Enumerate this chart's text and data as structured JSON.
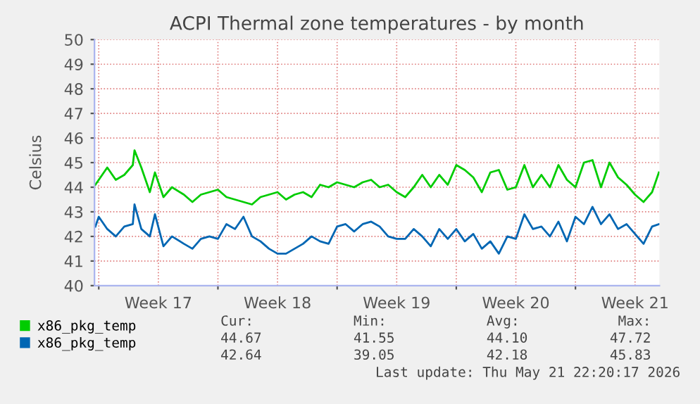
{
  "chart_data": {
    "type": "line",
    "title": "ACPI Thermal zone temperatures - by month",
    "ylabel": "Celsius",
    "x": [
      "2026-04-18T19:12",
      "2026-04-19T00:00",
      "2026-04-19T12:00",
      "2026-04-20T00:00",
      "2026-04-20T12:00",
      "2026-04-21T00:00",
      "2026-04-21T02:24",
      "2026-04-21T12:00",
      "2026-04-22T00:00",
      "2026-04-22T07:12",
      "2026-04-22T19:12",
      "2026-04-23T07:12",
      "2026-04-24T00:00",
      "2026-04-24T12:00",
      "2026-04-25T00:00",
      "2026-04-25T12:00",
      "2026-04-26T00:00",
      "2026-04-26T12:00",
      "2026-04-27T00:00",
      "2026-04-27T12:00",
      "2026-04-28T00:00",
      "2026-04-28T12:00",
      "2026-04-29T00:00",
      "2026-04-29T12:00",
      "2026-04-30T00:00",
      "2026-04-30T12:00",
      "2026-05-01T00:00",
      "2026-05-01T12:00",
      "2026-05-02T00:00",
      "2026-05-02T12:00",
      "2026-05-03T00:00",
      "2026-05-03T12:00",
      "2026-05-04T00:00",
      "2026-05-04T12:00",
      "2026-05-05T00:00",
      "2026-05-05T12:00",
      "2026-05-06T00:00",
      "2026-05-06T12:00",
      "2026-05-07T00:00",
      "2026-05-07T12:00",
      "2026-05-08T00:00",
      "2026-05-08T12:00",
      "2026-05-09T00:00",
      "2026-05-09T12:00",
      "2026-05-10T00:00",
      "2026-05-10T12:00",
      "2026-05-11T00:00",
      "2026-05-11T12:00",
      "2026-05-12T00:00",
      "2026-05-12T12:00",
      "2026-05-13T00:00",
      "2026-05-13T12:00",
      "2026-05-14T00:00",
      "2026-05-14T12:00",
      "2026-05-15T00:00",
      "2026-05-15T12:00",
      "2026-05-16T00:00",
      "2026-05-16T12:00",
      "2026-05-17T00:00",
      "2026-05-17T12:00",
      "2026-05-18T00:00",
      "2026-05-18T12:00",
      "2026-05-19T00:00",
      "2026-05-19T12:00",
      "2026-05-20T00:00",
      "2026-05-20T12:00",
      "2026-05-21T00:00",
      "2026-05-21T12:00",
      "2026-05-21T21:36"
    ],
    "series": [
      {
        "name": "x86_pkg_temp",
        "color": "#00cc00",
        "values": [
          44.1,
          44.3,
          44.8,
          44.3,
          44.5,
          44.9,
          45.5,
          44.8,
          43.8,
          44.6,
          43.6,
          44.0,
          43.7,
          43.4,
          43.7,
          43.8,
          43.9,
          43.6,
          43.5,
          43.4,
          43.3,
          43.6,
          43.7,
          43.8,
          43.5,
          43.7,
          43.8,
          43.6,
          44.1,
          44.0,
          44.2,
          44.1,
          44.0,
          44.2,
          44.3,
          44.0,
          44.1,
          43.8,
          43.6,
          44.0,
          44.5,
          44.0,
          44.5,
          44.1,
          44.9,
          44.7,
          44.4,
          43.8,
          44.6,
          44.7,
          43.9,
          44.0,
          44.9,
          44.0,
          44.5,
          44.0,
          44.9,
          44.3,
          44.0,
          45.0,
          45.1,
          44.0,
          45.0,
          44.4,
          44.1,
          43.7,
          43.4,
          43.8,
          44.6
        ]
      },
      {
        "name": "x86_pkg_temp",
        "color": "#0066b3",
        "values": [
          42.4,
          42.8,
          42.3,
          42.0,
          42.4,
          42.5,
          43.3,
          42.3,
          42.0,
          42.9,
          41.6,
          42.0,
          41.7,
          41.5,
          41.9,
          42.0,
          41.9,
          42.5,
          42.3,
          42.8,
          42.0,
          41.8,
          41.5,
          41.3,
          41.3,
          41.5,
          41.7,
          42.0,
          41.8,
          41.7,
          42.4,
          42.5,
          42.2,
          42.5,
          42.6,
          42.4,
          42.0,
          41.9,
          41.9,
          42.3,
          42.0,
          41.6,
          42.3,
          41.9,
          42.3,
          41.8,
          42.1,
          41.5,
          41.8,
          41.3,
          42.0,
          41.9,
          42.9,
          42.3,
          42.4,
          42.0,
          42.6,
          41.8,
          42.8,
          42.5,
          43.2,
          42.5,
          42.9,
          42.3,
          42.5,
          42.1,
          41.7,
          42.4,
          42.5
        ]
      }
    ],
    "xlim": [
      "2026-04-18T18:00",
      "2026-05-21T22:20"
    ],
    "xticks": [
      {
        "value": "2026-04-19T00:00",
        "label": null
      },
      {
        "value": "2026-04-22T12:00",
        "label": "Week 17"
      },
      {
        "value": "2026-04-26T00:00",
        "label": null
      },
      {
        "value": "2026-04-29T12:00",
        "label": "Week 18"
      },
      {
        "value": "2026-05-03T00:00",
        "label": null
      },
      {
        "value": "2026-05-06T12:00",
        "label": "Week 19"
      },
      {
        "value": "2026-05-10T00:00",
        "label": null
      },
      {
        "value": "2026-05-13T12:00",
        "label": "Week 20"
      },
      {
        "value": "2026-05-17T00:00",
        "label": null
      },
      {
        "value": "2026-05-20T12:00",
        "label": "Week 21"
      }
    ],
    "ylim": [
      40,
      50
    ],
    "yticks": [
      40,
      41,
      42,
      43,
      44,
      45,
      46,
      47,
      48,
      49,
      50
    ],
    "grid": true,
    "legend": "bottom",
    "marker": "none",
    "line_style": "solid",
    "annotations": [
      "Cur:",
      "Min:",
      "Avg:",
      "Max:",
      "44.67",
      "41.55",
      "44.10",
      "47.72",
      "42.64",
      "39.05",
      "42.18",
      "45.83",
      "Last update: Thu May 21 22:20:17 2026"
    ]
  }
}
